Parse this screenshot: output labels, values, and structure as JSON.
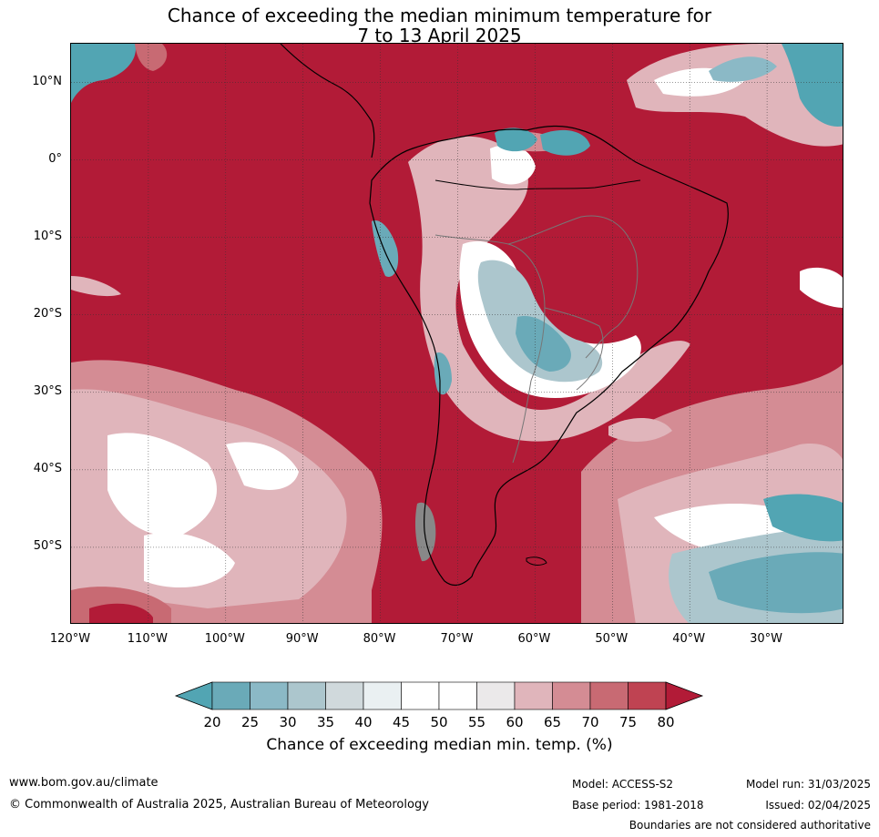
{
  "title_line1": "Chance of exceeding the median minimum temperature for",
  "title_line2": "7 to 13 April 2025",
  "map": {
    "lat_labels": [
      "10°N",
      "0°",
      "10°S",
      "20°S",
      "30°S",
      "40°S",
      "50°S"
    ],
    "lon_labels": [
      "120°W",
      "110°W",
      "100°W",
      "90°W",
      "80°W",
      "70°W",
      "60°W",
      "50°W",
      "40°W",
      "30°W"
    ],
    "lon_range": [
      -120,
      -20
    ],
    "lat_range": [
      -60,
      15
    ],
    "grid": true
  },
  "colorbar": {
    "ticks": [
      "20",
      "25",
      "30",
      "35",
      "40",
      "45",
      "50",
      "55",
      "60",
      "65",
      "70",
      "75",
      "80"
    ],
    "colors": [
      "#52a5b3",
      "#6aaab8",
      "#8bb9c6",
      "#acc6cd",
      "#d0d9dc",
      "#eaf0f2",
      "#ffffff",
      "#ffffff",
      "#ebe9ea",
      "#e0b5bb",
      "#d48c94",
      "#c86a73",
      "#bf4352",
      "#b21b37"
    ],
    "label": "Chance of exceeding median min. temp. (%)"
  },
  "footer": {
    "website": "www.bom.gov.au/climate",
    "copyright": "© Commonwealth of Australia 2025, Australian Bureau of Meteorology",
    "model": "Model: ACCESS-S2",
    "base_period": "Base period: 1981-2018",
    "model_run": "Model run: 31/03/2025",
    "issued": "Issued: 02/04/2025",
    "disclaimer": "Boundaries are not considered authoritative"
  },
  "colors": {
    "high": "#b21b37",
    "low": "#52a5b3",
    "land_outline": "#000000",
    "border": "#777777"
  }
}
